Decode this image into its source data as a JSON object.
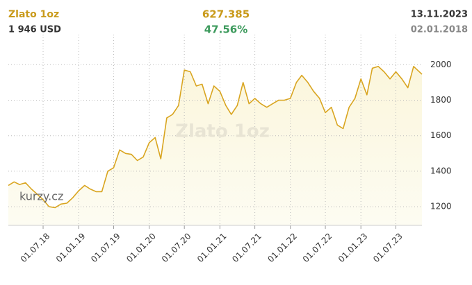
{
  "chart_data": {
    "type": "line",
    "title": "Zlato 1oz",
    "subtitle": "1 946 USD",
    "change": "627.385",
    "change_percent": "47.56%",
    "end_date": "13.11.2023",
    "start_date": "02.01.2018",
    "watermark": "kurzy.cz",
    "x": [
      "02.01.18",
      "01.02.18",
      "01.03.18",
      "01.04.18",
      "01.05.18",
      "01.06.18",
      "01.07.18",
      "01.08.18",
      "01.09.18",
      "01.10.18",
      "01.11.18",
      "01.12.18",
      "01.01.19",
      "01.02.19",
      "01.03.19",
      "01.04.19",
      "01.05.19",
      "01.06.19",
      "01.07.19",
      "01.08.19",
      "01.09.19",
      "01.10.19",
      "01.11.19",
      "01.12.19",
      "01.01.20",
      "01.02.20",
      "01.03.20",
      "01.04.20",
      "01.05.20",
      "01.06.20",
      "01.07.20",
      "01.08.20",
      "01.09.20",
      "01.10.20",
      "01.11.20",
      "01.12.20",
      "01.01.21",
      "01.02.21",
      "01.03.21",
      "01.04.21",
      "01.05.21",
      "01.06.21",
      "01.07.21",
      "01.08.21",
      "01.09.21",
      "01.10.21",
      "01.11.21",
      "01.12.21",
      "01.01.22",
      "01.02.22",
      "01.03.22",
      "01.04.22",
      "01.05.22",
      "01.06.22",
      "01.07.22",
      "01.08.22",
      "01.09.22",
      "01.10.22",
      "01.11.22",
      "01.12.22",
      "01.01.23",
      "01.02.23",
      "01.03.23",
      "01.04.23",
      "01.05.23",
      "01.06.23",
      "01.07.23",
      "01.08.23",
      "01.09.23",
      "01.10.23",
      "13.11.23"
    ],
    "series": [
      {
        "name": "Zlato 1oz",
        "color": "#d9a520",
        "values": [
          1320,
          1340,
          1325,
          1335,
          1300,
          1270,
          1240,
          1200,
          1195,
          1215,
          1220,
          1250,
          1290,
          1320,
          1300,
          1285,
          1285,
          1400,
          1420,
          1520,
          1500,
          1495,
          1460,
          1480,
          1560,
          1590,
          1470,
          1700,
          1720,
          1770,
          1970,
          1960,
          1880,
          1890,
          1780,
          1880,
          1850,
          1770,
          1720,
          1770,
          1900,
          1780,
          1810,
          1780,
          1760,
          1780,
          1800,
          1800,
          1810,
          1900,
          1940,
          1900,
          1850,
          1810,
          1730,
          1760,
          1660,
          1640,
          1760,
          1810,
          1920,
          1830,
          1980,
          1990,
          1960,
          1920,
          1960,
          1920,
          1870,
          1990,
          1946
        ]
      }
    ],
    "xlim": [
      "02.01.18",
      "13.11.23"
    ],
    "xticks": [
      "01.07.18",
      "01.01.19",
      "01.07.19",
      "01.01.20",
      "01.07.20",
      "01.01.21",
      "01.07.21",
      "01.01.22",
      "01.07.22",
      "01.01.23",
      "01.07.23"
    ],
    "ylim": [
      1095,
      2130
    ],
    "yticks": [
      1200,
      1400,
      1600,
      1800,
      2000
    ],
    "grid": true
  }
}
